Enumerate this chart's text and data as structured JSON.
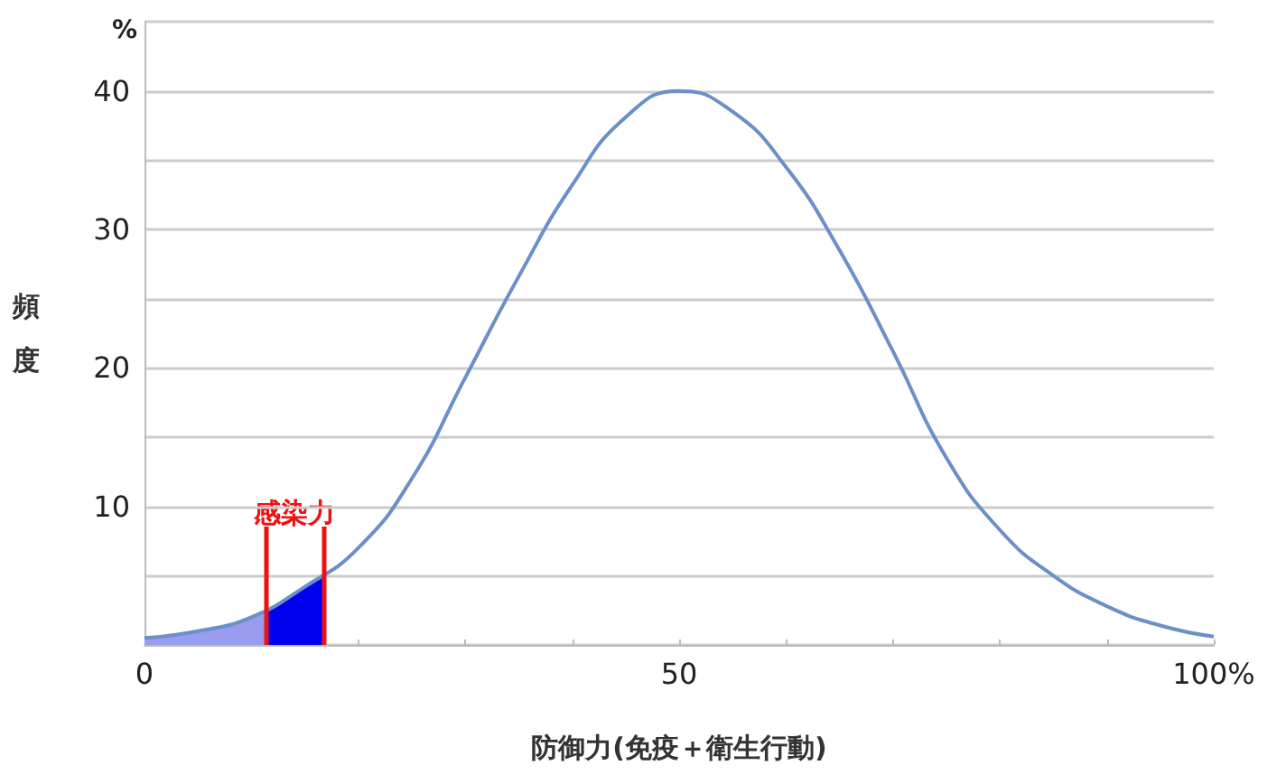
{
  "chart_data": {
    "type": "line",
    "xlabel": "防御力(免疫＋衛生行動)",
    "ylabel": "頻度",
    "annotations": [
      "%",
      "感染力"
    ],
    "xlim": [
      0,
      100
    ],
    "xticks": [
      0,
      {
        "value": 10,
        "label": null
      },
      {
        "value": 20,
        "label": null
      },
      {
        "value": 30,
        "label": null
      },
      {
        "value": 40,
        "label": null
      },
      50,
      {
        "value": 60,
        "label": null
      },
      {
        "value": 70,
        "label": null
      },
      {
        "value": 80,
        "label": null
      },
      {
        "value": 90,
        "label": null
      },
      {
        "value": 100,
        "label": "100%"
      }
    ],
    "ylim": [
      0,
      45
    ],
    "yticks": [
      {
        "value": 0,
        "label": null
      },
      {
        "value": 5,
        "label": null
      },
      10,
      {
        "value": 15,
        "label": null
      },
      20,
      {
        "value": 25,
        "label": null
      },
      30,
      {
        "value": 35,
        "label": null
      },
      40,
      {
        "value": 45,
        "label": null
      }
    ],
    "grid": "y",
    "series": [
      {
        "type": "area",
        "color": "#9a9cf0",
        "x": [
          0,
          5,
          10,
          11.3
        ],
        "values": [
          0.5,
          1.0,
          2.0,
          2.5
        ]
      },
      {
        "type": "area",
        "color": "#0000ee",
        "x": [
          11.3,
          15,
          16.7
        ],
        "values": [
          2.5,
          4.2,
          5.1
        ]
      },
      {
        "color": "#6b8fc9",
        "x": [
          0,
          5,
          10,
          15,
          20,
          25,
          30,
          35,
          40,
          45,
          50,
          55,
          60,
          65,
          70,
          75,
          80,
          85,
          90,
          95,
          100
        ],
        "values": [
          0.5,
          1.0,
          2.0,
          4.2,
          7.0,
          12.0,
          19.3,
          26.6,
          33.2,
          38.1,
          40,
          38.5,
          34.5,
          28.5,
          21.2,
          13.5,
          8.3,
          5.0,
          2.8,
          1.4,
          0.6
        ]
      }
    ],
    "ref_lines": [
      {
        "axis": "x",
        "value": 11.3,
        "color": "#ee1111"
      },
      {
        "axis": "x",
        "value": 16.7,
        "color": "#ee1111"
      }
    ]
  }
}
